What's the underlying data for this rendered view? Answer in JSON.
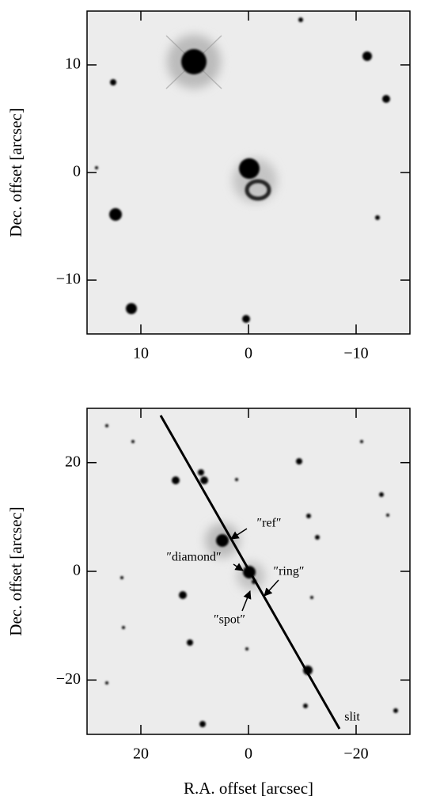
{
  "chart_data": [
    {
      "type": "image",
      "ylabel": "Dec. offset [arcsec]",
      "xlim": [
        15,
        -15
      ],
      "ylim": [
        -15,
        15
      ],
      "xticks": [
        10,
        0,
        {
          "value": -10,
          "label": "−10"
        }
      ],
      "yticks": [
        {
          "value": -10,
          "label": "−10"
        },
        0,
        10
      ]
    },
    {
      "type": "image",
      "ylabel": "Dec. offset [arcsec]",
      "xlabel": "R.A. offset [arcsec]",
      "xlim": [
        30,
        -30
      ],
      "ylim": [
        -30,
        30
      ],
      "xticks": [
        20,
        0,
        {
          "value": -20,
          "label": "−20"
        }
      ],
      "yticks": [
        {
          "value": -20,
          "label": "−20"
        },
        0,
        20
      ],
      "annotations": [
        {
          "text": "″ref″"
        },
        {
          "text": "″diamond″"
        },
        {
          "text": "″ring″"
        },
        {
          "text": "″spot″"
        },
        {
          "text": "slit"
        }
      ]
    }
  ]
}
